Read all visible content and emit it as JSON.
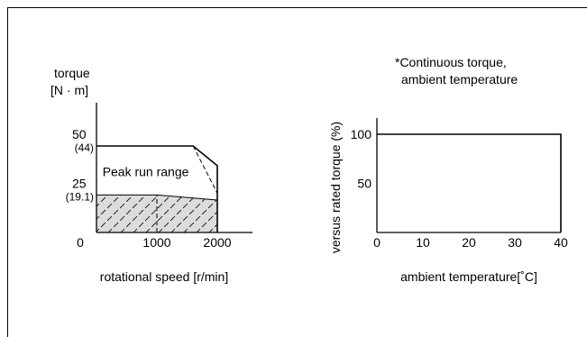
{
  "chart_data": [
    {
      "type": "area",
      "ylabel_lines": [
        "torque",
        "[N · m]"
      ],
      "xlabel": "rotational speed [r/min]",
      "xlim": [
        0,
        2500
      ],
      "ylim": [
        0,
        70
      ],
      "x_ticks": [
        {
          "value": 0,
          "label": "0"
        },
        {
          "value": 1000,
          "label": "1000"
        },
        {
          "value": 2000,
          "label": "2000"
        }
      ],
      "y_ticks": [
        {
          "value": 50,
          "label": "50"
        },
        {
          "value": 25,
          "label": "25"
        }
      ],
      "y_value_labels": [
        {
          "value": 44,
          "label": "(44)"
        },
        {
          "value": 19.1,
          "label": "(19.1)"
        }
      ],
      "series": [
        {
          "role": "peak",
          "x": [
            0,
            1600,
            2000,
            2000
          ],
          "y": [
            44,
            44,
            34,
            0
          ]
        },
        {
          "role": "continuous",
          "x": [
            0,
            1000,
            2000
          ],
          "y": [
            19.1,
            19.1,
            16.5
          ]
        }
      ],
      "dashed_segments": [
        {
          "x": [
            1000,
            1000
          ],
          "y": [
            0,
            19.1
          ]
        },
        {
          "x": [
            1600,
            2000
          ],
          "y": [
            44,
            20
          ]
        }
      ],
      "annotations": [
        {
          "text": "Peak run range",
          "x": 100,
          "y": 31
        }
      ]
    },
    {
      "type": "line",
      "title_lines": [
        "*Continuous torque,",
        "ambient temperature"
      ],
      "ylabel": "versus rated torque (%)",
      "xlabel": "ambient temperature[˚C]",
      "xlim": [
        0,
        40
      ],
      "ylim": [
        0,
        120
      ],
      "x_ticks": [
        {
          "value": 0,
          "label": "0"
        },
        {
          "value": 10,
          "label": "10"
        },
        {
          "value": 20,
          "label": "20"
        },
        {
          "value": 30,
          "label": "30"
        },
        {
          "value": 40,
          "label": "40"
        }
      ],
      "y_ticks": [
        {
          "value": 100,
          "label": "100"
        },
        {
          "value": 50,
          "label": "50"
        }
      ],
      "series": [
        {
          "x": [
            0,
            40,
            40
          ],
          "y": [
            100,
            100,
            0
          ]
        }
      ]
    }
  ]
}
